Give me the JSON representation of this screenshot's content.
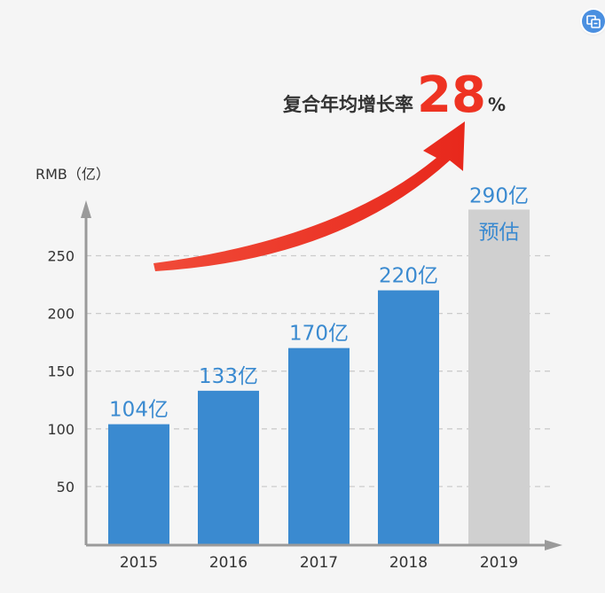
{
  "chart_data": {
    "type": "bar",
    "title_text": "复合年均增长率",
    "title_value": "28",
    "title_unit": "%",
    "ylabel": "RMB（亿）",
    "ylim": [
      0,
      290
    ],
    "yticks": [
      50,
      100,
      150,
      200,
      250
    ],
    "grid": true,
    "categories": [
      "2015",
      "2016",
      "2017",
      "2018",
      "2019"
    ],
    "values": [
      104,
      133,
      170,
      220,
      290
    ],
    "data_labels": [
      "104亿",
      "133亿",
      "170亿",
      "220亿",
      "290亿"
    ],
    "estimate_label": "预估",
    "estimated_category": "2019",
    "colors": {
      "actual": "#3a8ad0",
      "estimate": "#d0d0d0",
      "label": "#3a8ad0",
      "arrow": "#ee3322",
      "highlight": "#ee3322",
      "axis": "#9a9a9a",
      "grid": "#cccccc",
      "text": "#333333"
    }
  }
}
